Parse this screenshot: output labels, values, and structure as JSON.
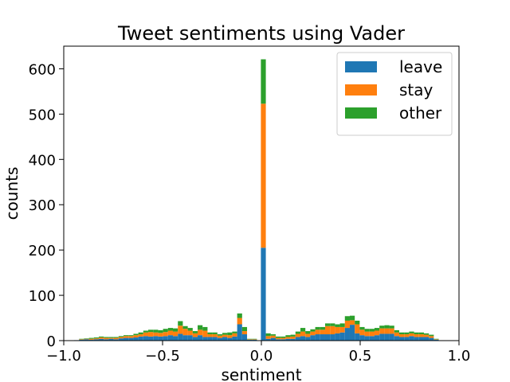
{
  "chart_data": {
    "type": "bar",
    "stacked": true,
    "title": "Tweet sentiments using Vader",
    "xlabel": "sentiment",
    "ylabel": "counts",
    "xlim": [
      -1.0,
      1.0
    ],
    "ylim": [
      0,
      650
    ],
    "x_ticks": [
      -1.0,
      -0.5,
      0.0,
      0.5,
      1.0
    ],
    "x_tick_labels": [
      "−1.0",
      "−0.5",
      "0.0",
      "0.5",
      "1.0"
    ],
    "y_ticks": [
      0,
      100,
      200,
      300,
      400,
      500,
      600
    ],
    "y_tick_labels": [
      "0",
      "100",
      "200",
      "300",
      "400",
      "500",
      "600"
    ],
    "legend_position": "top-right",
    "bin_width": 0.025,
    "x": [
      -0.96,
      -0.935,
      -0.91,
      -0.885,
      -0.86,
      -0.835,
      -0.81,
      -0.785,
      -0.76,
      -0.735,
      -0.71,
      -0.685,
      -0.66,
      -0.635,
      -0.61,
      -0.585,
      -0.56,
      -0.535,
      -0.51,
      -0.485,
      -0.46,
      -0.435,
      -0.41,
      -0.385,
      -0.36,
      -0.335,
      -0.31,
      -0.285,
      -0.26,
      -0.235,
      -0.21,
      -0.185,
      -0.16,
      -0.135,
      -0.11,
      -0.085,
      -0.06,
      -0.035,
      -0.01,
      0.01,
      0.035,
      0.06,
      0.085,
      0.11,
      0.135,
      0.16,
      0.185,
      0.21,
      0.235,
      0.26,
      0.285,
      0.31,
      0.335,
      0.36,
      0.385,
      0.41,
      0.435,
      0.46,
      0.485,
      0.51,
      0.535,
      0.56,
      0.585,
      0.61,
      0.635,
      0.66,
      0.685,
      0.71,
      0.735,
      0.76,
      0.785,
      0.81,
      0.835,
      0.86,
      0.885,
      0.91
    ],
    "series": [
      {
        "name": "leave",
        "color": "#1f77b4",
        "values": [
          0,
          1,
          2,
          3,
          2,
          3,
          4,
          3,
          4,
          3,
          5,
          6,
          6,
          7,
          9,
          10,
          9,
          10,
          9,
          10,
          12,
          10,
          15,
          12,
          12,
          8,
          12,
          8,
          8,
          8,
          6,
          8,
          6,
          9,
          36,
          14,
          2,
          2,
          0,
          205,
          4,
          6,
          3,
          3,
          4,
          4,
          8,
          10,
          8,
          12,
          14,
          14,
          14,
          14,
          16,
          18,
          28,
          35,
          16,
          12,
          10,
          10,
          12,
          15,
          15,
          15,
          10,
          8,
          8,
          10,
          8,
          8,
          8,
          6,
          2,
          0
        ]
      },
      {
        "name": "stay",
        "color": "#ff7f0e",
        "values": [
          0,
          0,
          1,
          1,
          2,
          2,
          3,
          3,
          2,
          3,
          3,
          4,
          4,
          5,
          5,
          8,
          10,
          8,
          8,
          9,
          10,
          10,
          18,
          14,
          10,
          8,
          12,
          14,
          6,
          6,
          5,
          5,
          6,
          7,
          14,
          7,
          1,
          1,
          0,
          318,
          6,
          5,
          3,
          3,
          4,
          5,
          7,
          10,
          7,
          8,
          10,
          10,
          18,
          18,
          14,
          12,
          16,
          10,
          20,
          12,
          10,
          10,
          10,
          12,
          12,
          12,
          8,
          6,
          6,
          6,
          6,
          6,
          5,
          4,
          1,
          0
        ]
      },
      {
        "name": "other",
        "color": "#2ca02c",
        "values": [
          0,
          0,
          1,
          1,
          2,
          2,
          2,
          2,
          2,
          2,
          2,
          2,
          2,
          3,
          4,
          4,
          5,
          6,
          6,
          7,
          6,
          7,
          10,
          6,
          6,
          5,
          10,
          8,
          4,
          4,
          3,
          4,
          6,
          4,
          10,
          9,
          1,
          1,
          0,
          98,
          6,
          3,
          3,
          3,
          4,
          4,
          5,
          8,
          6,
          5,
          6,
          6,
          6,
          6,
          6,
          8,
          10,
          10,
          8,
          6,
          6,
          6,
          6,
          6,
          7,
          6,
          5,
          4,
          4,
          4,
          4,
          4,
          3,
          3,
          1,
          0
        ]
      }
    ]
  }
}
